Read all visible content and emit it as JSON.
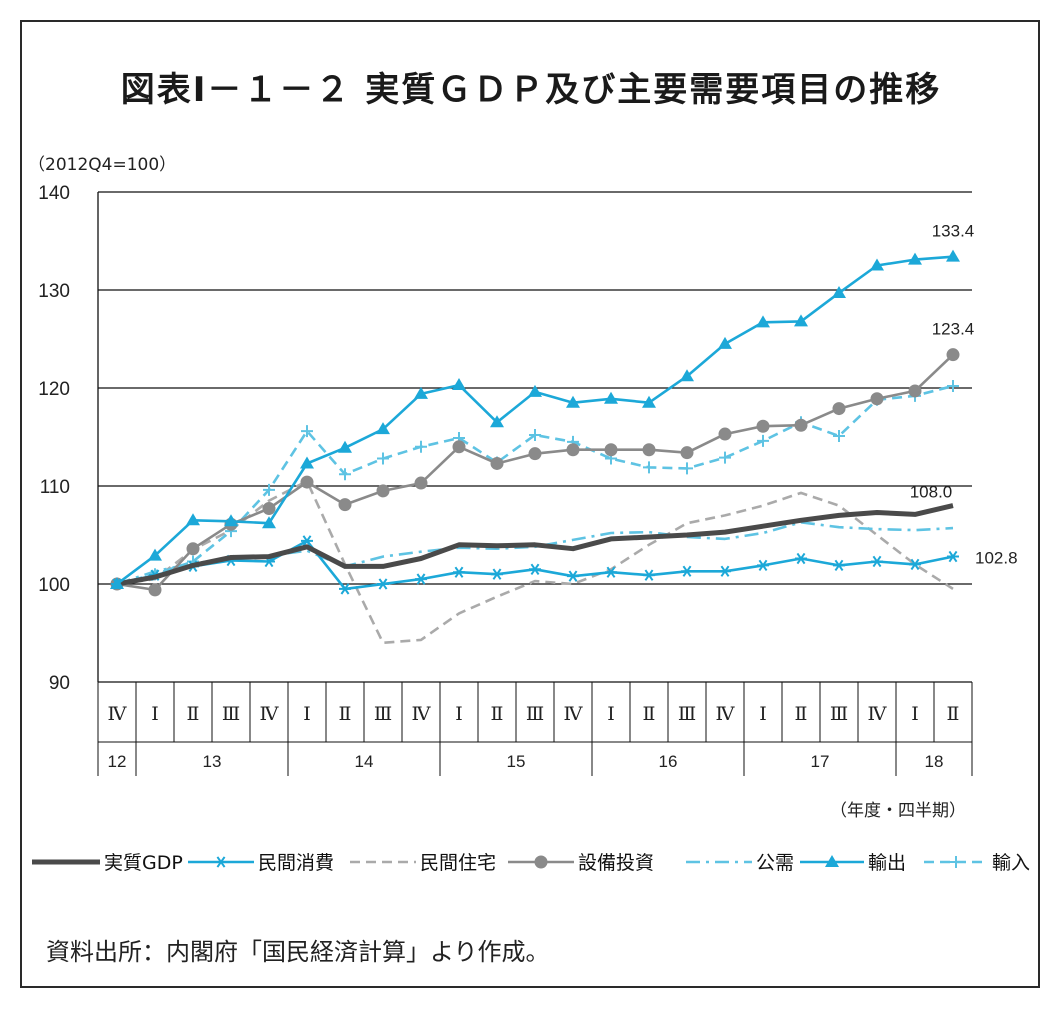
{
  "title": "図表Ⅰ－１－２ 実質ＧＤＰ及び主要需要項目の推移",
  "unit_label": "（2012Q4=100）",
  "period_label": "（年度・四半期）",
  "source": "資料出所：内閣府「国民経済計算」より作成。",
  "chart_data": {
    "type": "line",
    "ylim": [
      90,
      140
    ],
    "yticks": [
      90,
      100,
      110,
      120,
      130,
      140
    ],
    "quarters": [
      "Ⅳ",
      "Ⅰ",
      "Ⅱ",
      "Ⅲ",
      "Ⅳ",
      "Ⅰ",
      "Ⅱ",
      "Ⅲ",
      "Ⅳ",
      "Ⅰ",
      "Ⅱ",
      "Ⅲ",
      "Ⅳ",
      "Ⅰ",
      "Ⅱ",
      "Ⅲ",
      "Ⅳ",
      "Ⅰ",
      "Ⅱ",
      "Ⅲ",
      "Ⅳ",
      "Ⅰ",
      "Ⅱ"
    ],
    "years": [
      {
        "label": "12",
        "start": 0,
        "end": 0
      },
      {
        "label": "13",
        "start": 1,
        "end": 4
      },
      {
        "label": "14",
        "start": 5,
        "end": 8
      },
      {
        "label": "15",
        "start": 9,
        "end": 12
      },
      {
        "label": "16",
        "start": 13,
        "end": 16
      },
      {
        "label": "17",
        "start": 17,
        "end": 20
      },
      {
        "label": "18",
        "start": 21,
        "end": 22
      }
    ],
    "grid": true,
    "legend_position": "bottom",
    "series": [
      {
        "name": "実質GDP",
        "color": "#4a4a4a",
        "style": "solid-thick",
        "marker": "none",
        "values": [
          100,
          100.7,
          101.9,
          102.7,
          102.8,
          103.8,
          101.8,
          101.8,
          102.6,
          104.0,
          103.9,
          104.0,
          103.6,
          104.6,
          104.8,
          105.0,
          105.3,
          105.9,
          106.5,
          107.0,
          107.3,
          107.1,
          108.0
        ],
        "end_label": "108.0"
      },
      {
        "name": "民間消費",
        "color": "#1ca8d8",
        "style": "solid",
        "marker": "asterisk",
        "values": [
          100,
          100.9,
          101.8,
          102.4,
          102.3,
          104.4,
          99.5,
          100.0,
          100.5,
          101.2,
          101.0,
          101.5,
          100.8,
          101.2,
          100.9,
          101.3,
          101.3,
          101.9,
          102.6,
          101.9,
          102.3,
          102.0,
          102.8
        ],
        "end_label": "102.8"
      },
      {
        "name": "民間住宅",
        "color": "#aaaaaa",
        "style": "dashed",
        "marker": "none",
        "values": [
          100,
          100.5,
          103.5,
          105.5,
          108.5,
          110.5,
          102.0,
          94.0,
          94.3,
          97.0,
          98.7,
          100.3,
          100.0,
          101.5,
          104.0,
          106.2,
          107.0,
          108.0,
          109.3,
          108.0,
          105.0,
          102.0,
          99.5
        ]
      },
      {
        "name": "設備投資",
        "color": "#8a8a8a",
        "style": "solid",
        "marker": "circle",
        "values": [
          100,
          99.4,
          103.6,
          106.1,
          107.7,
          110.4,
          108.1,
          109.5,
          110.3,
          114.0,
          112.3,
          113.3,
          113.7,
          113.7,
          113.7,
          113.4,
          115.3,
          116.1,
          116.2,
          117.9,
          118.9,
          119.7,
          123.4
        ],
        "end_label": "123.4"
      },
      {
        "name": "公需",
        "color": "#5ec3e3",
        "style": "dashdot",
        "marker": "none",
        "values": [
          100,
          101.3,
          102.1,
          102.6,
          102.9,
          103.4,
          101.8,
          102.8,
          103.3,
          103.7,
          103.6,
          103.8,
          104.5,
          105.2,
          105.3,
          104.8,
          104.6,
          105.2,
          106.3,
          105.8,
          105.6,
          105.5,
          105.7
        ]
      },
      {
        "name": "輸出",
        "color": "#1ca8d8",
        "style": "solid",
        "marker": "triangle",
        "values": [
          100,
          102.9,
          106.5,
          106.4,
          106.2,
          112.3,
          113.9,
          115.8,
          119.4,
          120.3,
          116.5,
          119.6,
          118.5,
          118.9,
          118.5,
          121.2,
          124.5,
          126.7,
          126.8,
          129.7,
          132.5,
          133.1,
          133.4
        ],
        "end_label": "133.4"
      },
      {
        "name": "輸入",
        "color": "#5ec3e3",
        "style": "dashed",
        "marker": "plus",
        "values": [
          100,
          101.0,
          102.3,
          105.4,
          109.6,
          115.6,
          111.2,
          112.8,
          114.0,
          114.9,
          112.4,
          115.2,
          114.5,
          112.8,
          111.9,
          111.8,
          112.9,
          114.6,
          116.5,
          115.1,
          118.8,
          119.2,
          120.2
        ]
      }
    ]
  }
}
